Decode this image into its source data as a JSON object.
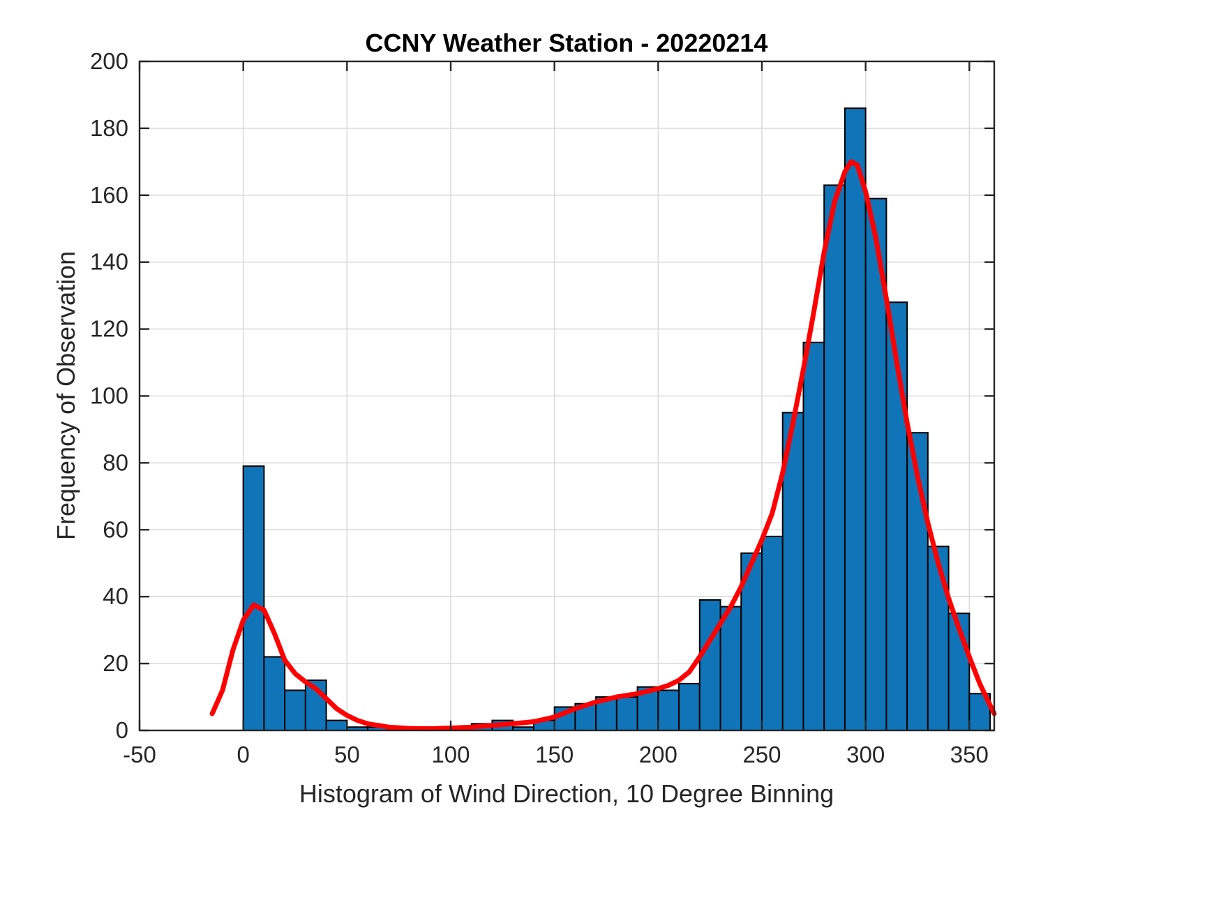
{
  "colors": {
    "background": "#ffffff",
    "bar_fill": "#1074b8",
    "bar_edge": "#000000",
    "curve": "#ff0000",
    "grid": "#dbdbdb",
    "axis": "#262626",
    "title_text": "#000000"
  },
  "chart_data": {
    "type": "bar",
    "title": "CCNY Weather Station - 20220214",
    "xlabel": "Histogram of Wind Direction, 10 Degree Binning",
    "ylabel": "Frequency of Observation",
    "grid": true,
    "legend": "none",
    "bins": {
      "start": 0,
      "width": 10,
      "count": 36
    },
    "values": [
      79,
      22,
      12,
      15,
      3,
      1,
      1,
      1,
      1,
      1,
      1,
      2,
      3,
      1,
      3,
      7,
      8,
      10,
      10,
      13,
      12,
      14,
      39,
      37,
      53,
      58,
      95,
      116,
      163,
      186,
      159,
      128,
      89,
      55,
      35,
      11
    ],
    "xlim": [
      -50,
      362
    ],
    "ylim": [
      0,
      200
    ],
    "xticks": [
      -50,
      0,
      50,
      100,
      150,
      200,
      250,
      300,
      350
    ],
    "yticks": [
      0,
      20,
      40,
      60,
      80,
      100,
      120,
      140,
      160,
      180,
      200
    ],
    "fit_curve": {
      "name": "kernel-density-fit",
      "color": "#ff0000",
      "x": [
        -15,
        -10,
        -5,
        0,
        5,
        10,
        15,
        20,
        25,
        30,
        35,
        40,
        45,
        50,
        55,
        60,
        70,
        80,
        90,
        100,
        110,
        120,
        130,
        140,
        150,
        160,
        170,
        180,
        190,
        200,
        205,
        210,
        215,
        220,
        225,
        230,
        235,
        240,
        245,
        250,
        255,
        260,
        265,
        270,
        275,
        280,
        285,
        290,
        293,
        296,
        300,
        305,
        310,
        315,
        320,
        325,
        330,
        335,
        340,
        345,
        350,
        355,
        360,
        362
      ],
      "y": [
        5,
        12,
        24,
        33,
        37.5,
        36,
        29,
        21,
        17,
        14.5,
        12.5,
        9.5,
        6.5,
        4.5,
        3,
        2,
        1,
        0.6,
        0.5,
        0.7,
        1,
        1.5,
        2,
        2.6,
        4,
        6.5,
        8.5,
        10,
        11,
        12.5,
        13.5,
        15,
        17.5,
        22,
        27,
        32,
        37,
        43,
        50,
        57,
        65,
        77,
        92,
        108,
        125,
        143,
        158,
        167,
        170,
        169,
        161,
        147,
        129,
        110,
        92,
        76,
        62,
        50,
        39.5,
        30.5,
        22,
        14,
        7.5,
        5
      ]
    }
  }
}
